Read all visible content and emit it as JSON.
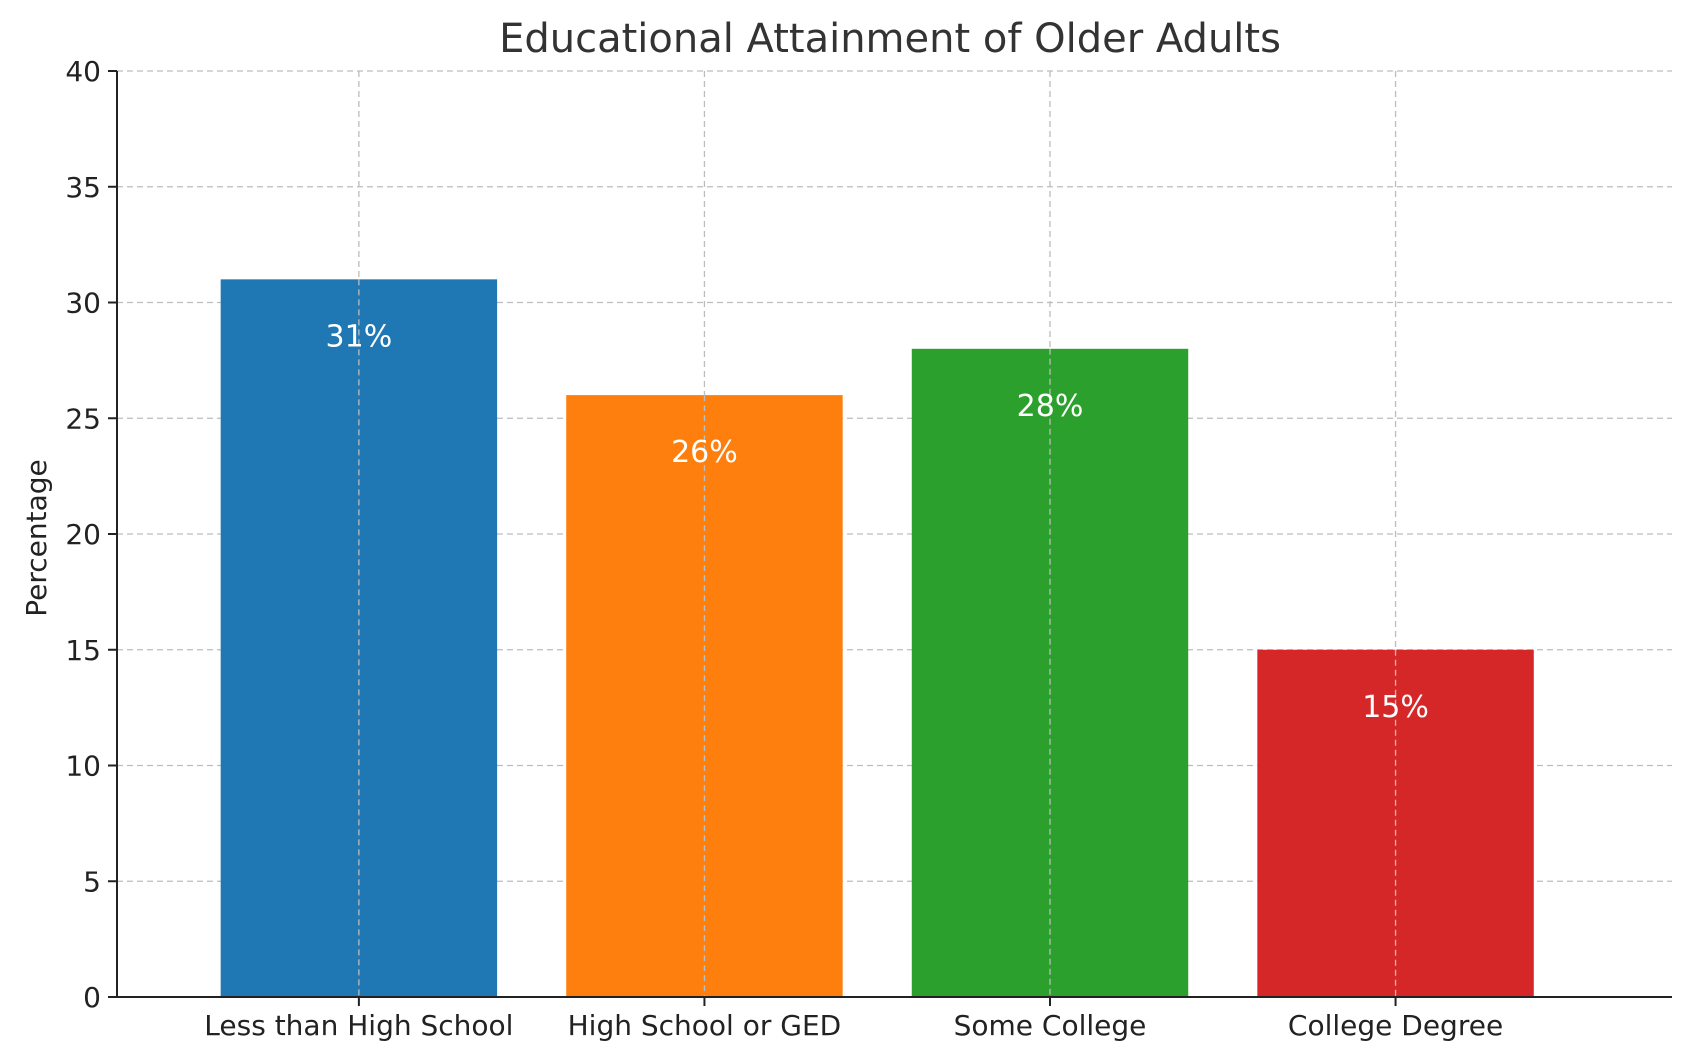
{
  "chart_data": {
    "type": "bar",
    "title": "Educational Attainment of Older Adults",
    "xlabel": "",
    "ylabel": "Percentage",
    "categories": [
      "Less than High School",
      "High School or GED",
      "Some College",
      "College Degree"
    ],
    "values": [
      31,
      26,
      28,
      15
    ],
    "value_labels": [
      "31%",
      "26%",
      "28%",
      "15%"
    ],
    "colors": [
      "#1f77b4",
      "#ff7f0e",
      "#2ca02c",
      "#d62728"
    ],
    "ylim": [
      0,
      40
    ],
    "yticks": [
      0,
      5,
      10,
      15,
      20,
      25,
      30,
      35,
      40
    ],
    "grid": true,
    "legend": "none"
  }
}
